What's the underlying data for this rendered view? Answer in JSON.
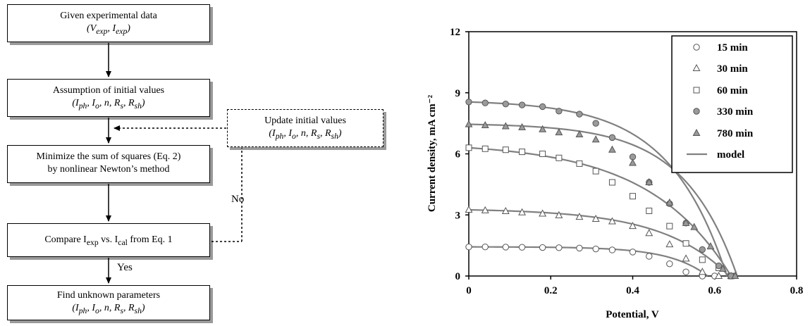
{
  "flowchart": {
    "box1": {
      "line1": "Given experimental data",
      "line2": "(V_exp, I_exp)"
    },
    "box2": {
      "line1": "Assumption of initial values",
      "line2": "(I_ph, I_o, n, R_s, R_sh)"
    },
    "box3": {
      "line1": "Minimize the sum of squares (Eq. 2)",
      "line2": "by nonlinear Newton’s method"
    },
    "box4": {
      "text": "Compare I_exp vs. I_cal from Eq. 1"
    },
    "box5": {
      "line1": "Find unknown parameters",
      "line2": "(I_ph, I_o, n, R_s, R_sh)"
    },
    "update": {
      "line1": "Update initial values",
      "line2": "(I_ph, I_o, n, R_s, R_sh)"
    },
    "no_label": "No",
    "yes_label": "Yes"
  },
  "chart_data": {
    "type": "scatter",
    "xlabel": "Potential, V",
    "ylabel": "Current density, mA cm⁻²",
    "xlim": [
      0,
      0.8
    ],
    "ylim": [
      0,
      12
    ],
    "xticks": [
      "0",
      "0.2",
      "0.4",
      "0.6",
      "0.8"
    ],
    "yticks": [
      "0",
      "3",
      "6",
      "9",
      "12"
    ],
    "legend_position": "top-right",
    "grid": false,
    "series": [
      {
        "name": "15 min",
        "marker": "circle",
        "fill": "#ffffff",
        "x": [
          0,
          0.04,
          0.09,
          0.13,
          0.18,
          0.22,
          0.27,
          0.31,
          0.35,
          0.4,
          0.44,
          0.49,
          0.53,
          0.57,
          0.6
        ],
        "y": [
          1.43,
          1.43,
          1.42,
          1.41,
          1.4,
          1.39,
          1.37,
          1.33,
          1.28,
          1.18,
          0.97,
          0.6,
          0.2,
          0.0,
          0.0
        ]
      },
      {
        "name": "30 min",
        "marker": "triangle",
        "fill": "#ffffff",
        "x": [
          0,
          0.04,
          0.09,
          0.13,
          0.18,
          0.22,
          0.27,
          0.31,
          0.35,
          0.4,
          0.44,
          0.49,
          0.53,
          0.57,
          0.61,
          0.64
        ],
        "y": [
          3.25,
          3.22,
          3.18,
          3.12,
          3.06,
          2.98,
          2.9,
          2.8,
          2.68,
          2.45,
          2.1,
          1.55,
          0.85,
          0.2,
          0.0,
          0.0
        ]
      },
      {
        "name": "60 min",
        "marker": "square",
        "fill": "#ffffff",
        "x": [
          0,
          0.04,
          0.09,
          0.13,
          0.18,
          0.22,
          0.27,
          0.31,
          0.35,
          0.4,
          0.44,
          0.49,
          0.53,
          0.57,
          0.61,
          0.64
        ],
        "y": [
          6.3,
          6.25,
          6.2,
          6.1,
          6.0,
          5.8,
          5.52,
          5.15,
          4.6,
          3.92,
          3.2,
          2.45,
          1.6,
          0.8,
          0.4,
          0.0
        ]
      },
      {
        "name": "330 min",
        "marker": "circle",
        "fill": "#9a9a9a",
        "x": [
          0,
          0.04,
          0.09,
          0.13,
          0.18,
          0.22,
          0.27,
          0.31,
          0.35,
          0.4,
          0.44,
          0.49,
          0.53,
          0.57,
          0.61,
          0.64
        ],
        "y": [
          8.55,
          8.5,
          8.45,
          8.4,
          8.32,
          8.1,
          7.95,
          7.5,
          6.8,
          5.85,
          4.6,
          3.55,
          2.6,
          1.3,
          0.5,
          0.0
        ]
      },
      {
        "name": "780 min",
        "marker": "triangle",
        "fill": "#9a9a9a",
        "x": [
          0,
          0.04,
          0.09,
          0.13,
          0.18,
          0.22,
          0.27,
          0.31,
          0.35,
          0.4,
          0.44,
          0.49,
          0.53,
          0.55,
          0.59,
          0.62,
          0.65
        ],
        "y": [
          7.45,
          7.4,
          7.35,
          7.3,
          7.2,
          7.05,
          6.95,
          6.7,
          6.2,
          5.55,
          4.6,
          3.6,
          2.6,
          2.4,
          1.45,
          0.35,
          0.0
        ]
      }
    ],
    "model": {
      "name": "model",
      "curves": [
        {
          "voc": 0.583,
          "isc": 1.43,
          "k": 0.092
        },
        {
          "voc": 0.635,
          "isc": 3.25,
          "k": 0.16
        },
        {
          "voc": 0.64,
          "isc": 6.3,
          "k": 0.2
        },
        {
          "voc": 0.63,
          "isc": 8.55,
          "k": 0.14
        },
        {
          "voc": 0.655,
          "isc": 7.45,
          "k": 0.13
        }
      ]
    }
  }
}
